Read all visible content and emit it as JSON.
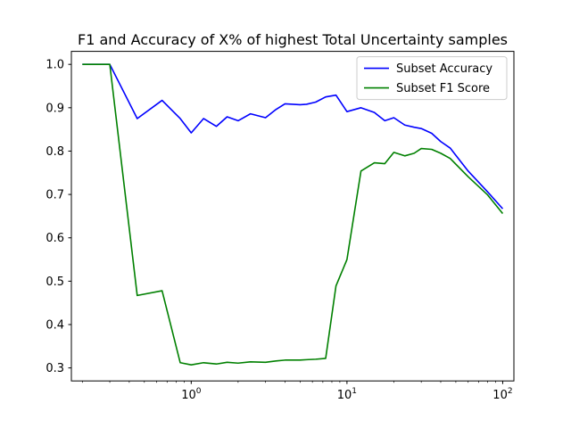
{
  "chart_data": {
    "type": "line",
    "title": "F1 and Accuracy of X% of highest Total Uncertainty samples",
    "xlabel": "",
    "ylabel": "",
    "xscale": "log",
    "xlim": [
      0.17,
      118
    ],
    "ylim": [
      0.27,
      1.03
    ],
    "xticks": [
      {
        "value": 1,
        "label": "10",
        "sup": "0"
      },
      {
        "value": 10,
        "label": "10",
        "sup": "1"
      },
      {
        "value": 100,
        "label": "10",
        "sup": "2"
      }
    ],
    "yticks": [
      {
        "value": 0.3,
        "label": "0.3"
      },
      {
        "value": 0.4,
        "label": "0.4"
      },
      {
        "value": 0.5,
        "label": "0.5"
      },
      {
        "value": 0.6,
        "label": "0.6"
      },
      {
        "value": 0.7,
        "label": "0.7"
      },
      {
        "value": 0.8,
        "label": "0.8"
      },
      {
        "value": 0.9,
        "label": "0.9"
      },
      {
        "value": 1.0,
        "label": "1.0"
      }
    ],
    "grid": false,
    "legend_position": "top-right",
    "x": [
      0.2,
      0.3,
      0.45,
      0.65,
      0.85,
      1.0,
      1.2,
      1.45,
      1.7,
      2.0,
      2.4,
      3.0,
      3.5,
      4.0,
      5.0,
      5.5,
      6.3,
      7.3,
      8.5,
      10.0,
      12.3,
      15.0,
      17.5,
      20.0,
      23.5,
      27.0,
      30.0,
      35.0,
      40.0,
      46.0,
      60.0,
      80.0,
      100.0
    ],
    "series": [
      {
        "name": "Subset Accuracy",
        "color": "#0000ff",
        "values": [
          1.0,
          1.0,
          0.875,
          0.917,
          0.875,
          0.842,
          0.875,
          0.857,
          0.879,
          0.87,
          0.886,
          0.877,
          0.896,
          0.909,
          0.907,
          0.908,
          0.913,
          0.925,
          0.929,
          0.891,
          0.9,
          0.889,
          0.87,
          0.877,
          0.86,
          0.855,
          0.852,
          0.841,
          0.822,
          0.807,
          0.754,
          0.706,
          0.667
        ]
      },
      {
        "name": "Subset F1 Score",
        "color": "#008000",
        "values": [
          1.0,
          1.0,
          0.467,
          0.478,
          0.312,
          0.307,
          0.312,
          0.309,
          0.313,
          0.311,
          0.314,
          0.313,
          0.316,
          0.318,
          0.318,
          0.319,
          0.32,
          0.322,
          0.489,
          0.55,
          0.754,
          0.773,
          0.771,
          0.797,
          0.789,
          0.795,
          0.806,
          0.804,
          0.795,
          0.783,
          0.741,
          0.699,
          0.656
        ]
      }
    ]
  }
}
